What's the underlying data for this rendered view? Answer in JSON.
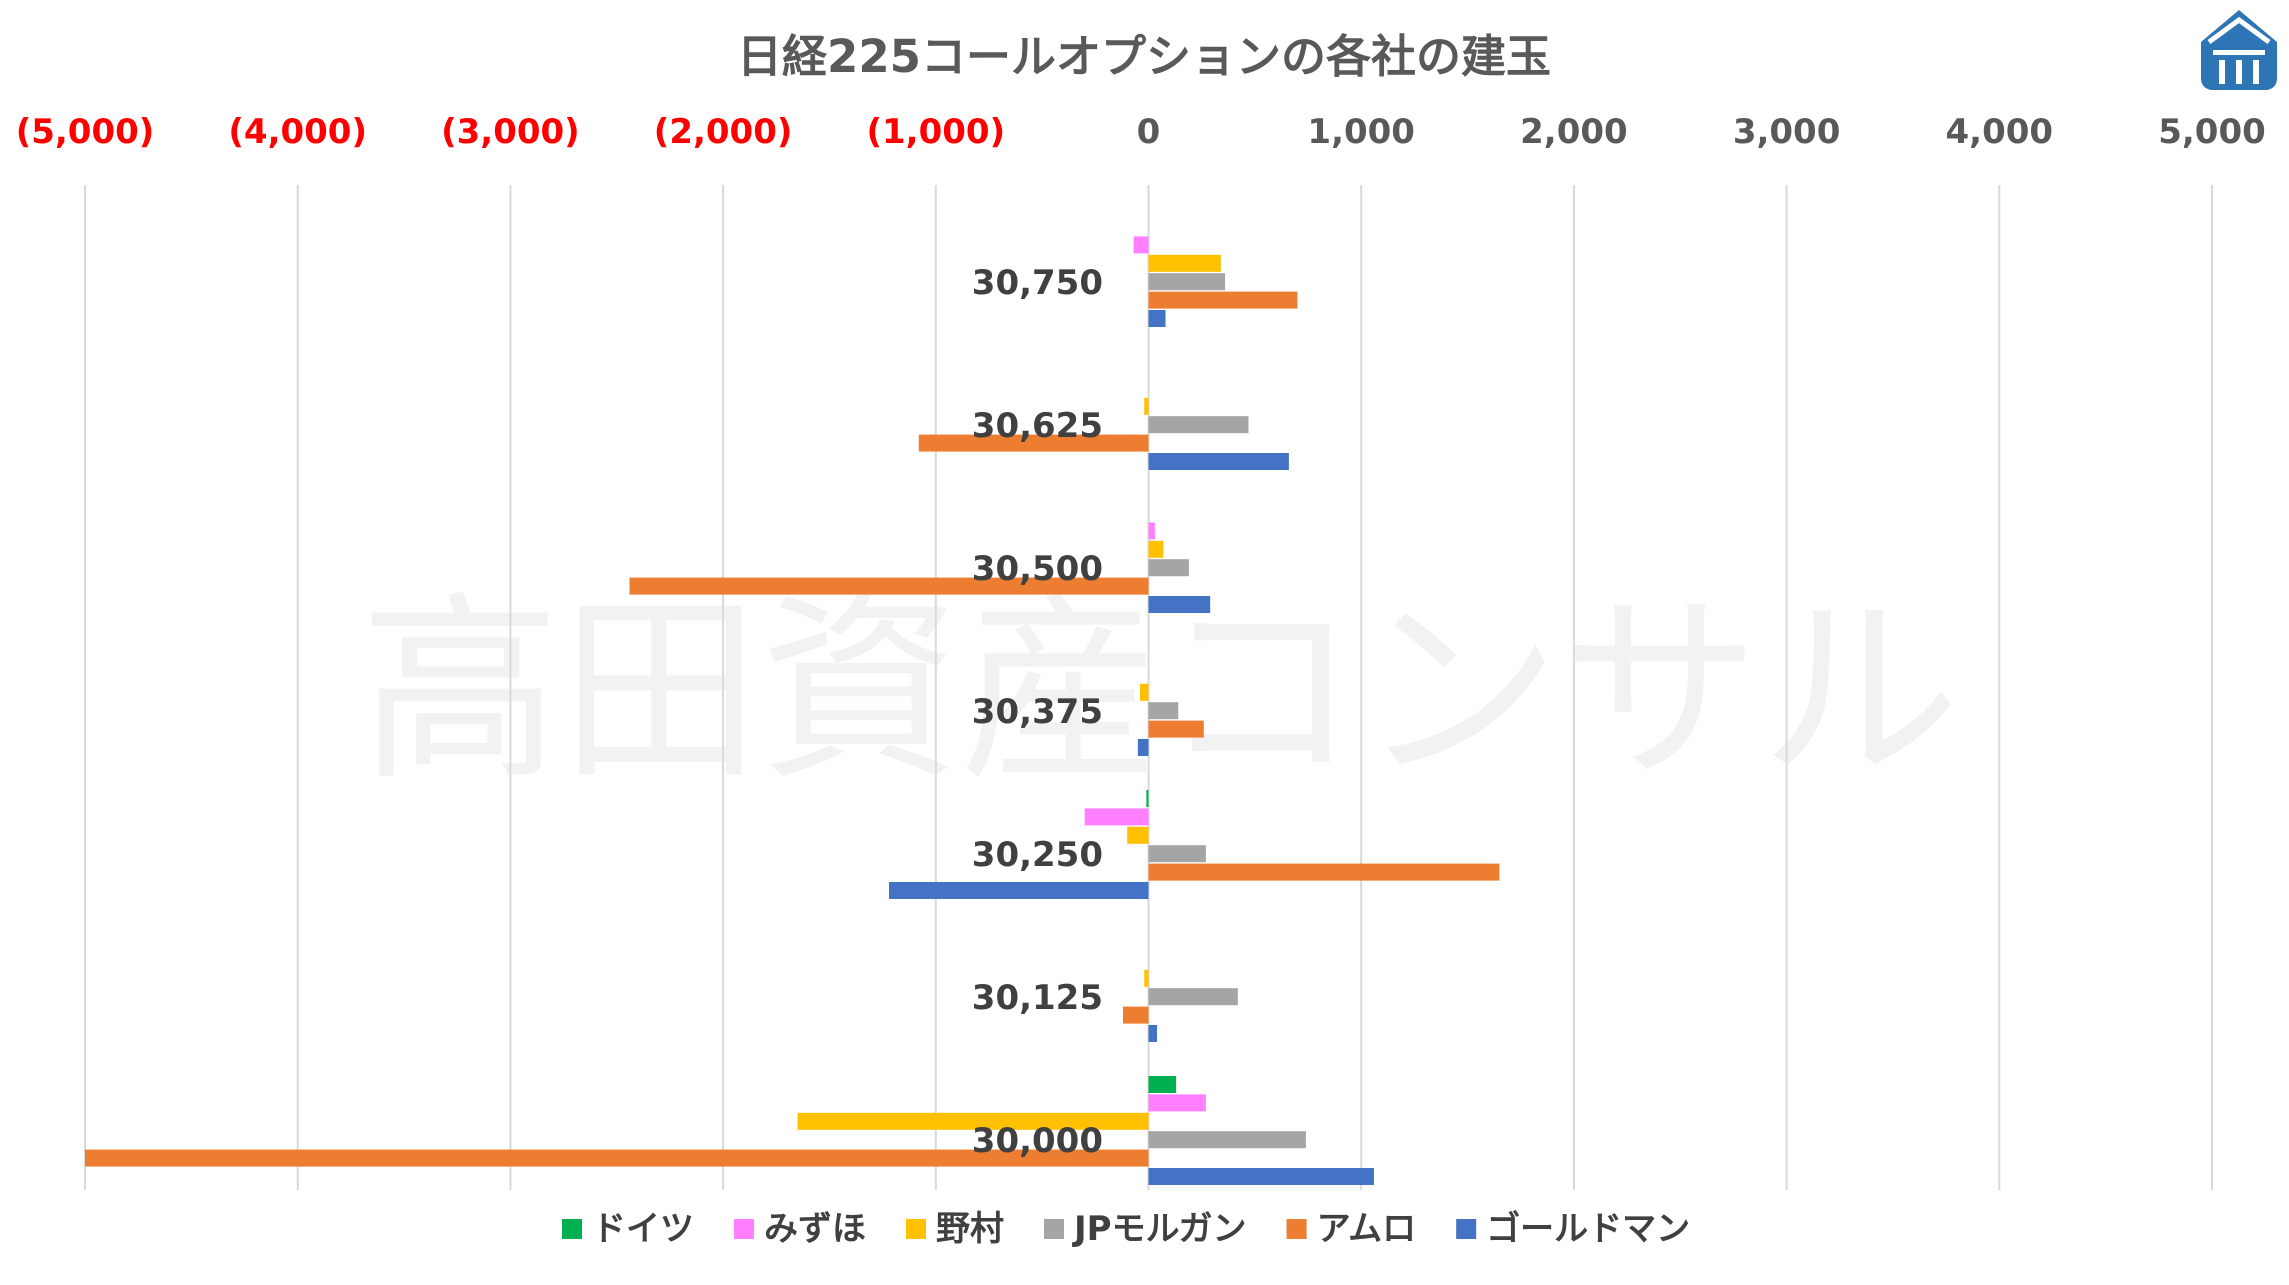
{
  "chart_data": {
    "type": "bar",
    "orientation": "horizontal",
    "title": "日経225コールオプションの各社の建玉",
    "watermark": "高田資産コンサル",
    "logo": "logo-icon",
    "x_ticks": [
      "(5,000)",
      "(4,000)",
      "(3,000)",
      "(2,000)",
      "(1,000)",
      "0",
      "1,000",
      "2,000",
      "3,000",
      "4,000",
      "5,000"
    ],
    "xlim": [
      -5000,
      5000
    ],
    "grid": true,
    "legend_position": "bottom",
    "categories": [
      "30,750",
      "30,625",
      "30,500",
      "30,375",
      "30,250",
      "30,125",
      "30,000"
    ],
    "series": [
      {
        "name": "ドイツ",
        "color": "#00b050",
        "values": [
          0,
          0,
          0,
          0,
          -10,
          0,
          130
        ]
      },
      {
        "name": "みずほ",
        "color": "#ff7fff",
        "values": [
          -70,
          0,
          30,
          0,
          -300,
          0,
          270
        ]
      },
      {
        "name": "野村",
        "color": "#ffc000",
        "values": [
          340,
          -20,
          70,
          -40,
          -100,
          -20,
          -1650
        ]
      },
      {
        "name": "JPモルガン",
        "color": "#a5a5a5",
        "values": [
          360,
          470,
          190,
          140,
          270,
          420,
          740
        ]
      },
      {
        "name": "アムロ",
        "color": "#ed7d31",
        "values": [
          700,
          -1080,
          -2440,
          260,
          1650,
          -120,
          -5000
        ]
      },
      {
        "name": "ゴールドマン",
        "color": "#4472c4",
        "values": [
          80,
          660,
          290,
          -50,
          -1220,
          40,
          1060
        ]
      }
    ],
    "colors": {
      "negative_tick": "#ff0000",
      "positive_tick": "#595959",
      "grid": "#d9d9d9",
      "logo": "#2e75b6"
    }
  }
}
